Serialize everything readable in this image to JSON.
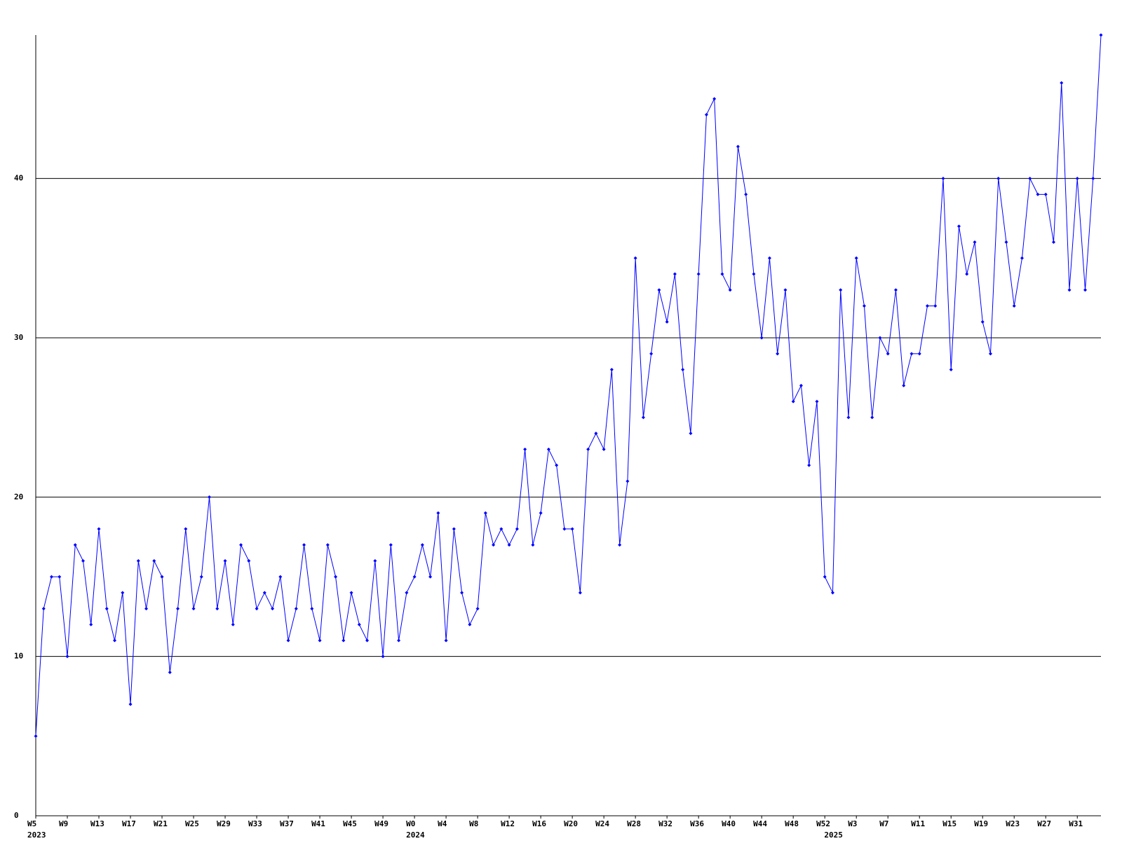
{
  "chart_data": {
    "type": "line",
    "categories": [
      "W5",
      null,
      null,
      null,
      "W9",
      null,
      null,
      null,
      "W13",
      null,
      null,
      null,
      "W17",
      null,
      null,
      null,
      "W21",
      null,
      null,
      null,
      "W25",
      null,
      null,
      null,
      "W29",
      null,
      null,
      null,
      "W33",
      null,
      null,
      null,
      "W37",
      null,
      null,
      null,
      "W41",
      null,
      null,
      null,
      "W45",
      null,
      null,
      null,
      "W49",
      null,
      null,
      null,
      "W0",
      null,
      null,
      null,
      "W4",
      null,
      null,
      null,
      "W8",
      null,
      null,
      null,
      "W12",
      null,
      null,
      null,
      "W16",
      null,
      null,
      null,
      "W20",
      null,
      null,
      null,
      "W24",
      null,
      null,
      null,
      "W28",
      null,
      null,
      null,
      "W32",
      null,
      null,
      null,
      "W36",
      null,
      null,
      null,
      "W40",
      null,
      null,
      null,
      "W44",
      null,
      null,
      null,
      "W48",
      null,
      null,
      null,
      "W52",
      null,
      null,
      null,
      "W3",
      null,
      null,
      null,
      "W7",
      null,
      null,
      null,
      "W11",
      null,
      null,
      null,
      "W15",
      null,
      null,
      null,
      "W19",
      null,
      null,
      null,
      "W23",
      null,
      null,
      null,
      "W27",
      null,
      null,
      null,
      "W31",
      null,
      null,
      null
    ],
    "year_categories": [
      "2023",
      null,
      null,
      null,
      null,
      null,
      null,
      null,
      null,
      null,
      null,
      null,
      null,
      null,
      null,
      null,
      null,
      null,
      null,
      null,
      null,
      null,
      null,
      null,
      null,
      null,
      null,
      null,
      null,
      null,
      null,
      null,
      null,
      null,
      null,
      null,
      null,
      null,
      null,
      null,
      null,
      null,
      null,
      null,
      null,
      null,
      null,
      null,
      "2024",
      null,
      null,
      null,
      null,
      null,
      null,
      null,
      null,
      null,
      null,
      null,
      null,
      null,
      null,
      null,
      null,
      null,
      null,
      null,
      null,
      null,
      null,
      null,
      null,
      null,
      null,
      null,
      null,
      null,
      null,
      null,
      null,
      null,
      null,
      null,
      null,
      null,
      null,
      null,
      null,
      null,
      null,
      null,
      null,
      null,
      null,
      null,
      null,
      null,
      null,
      null,
      null,
      "2025",
      null,
      null,
      null,
      null,
      null,
      null,
      null,
      null,
      null,
      null,
      null,
      null,
      null,
      null,
      null,
      null,
      null,
      null,
      null,
      null,
      null,
      null,
      null,
      null,
      null,
      null,
      null,
      null,
      null,
      null,
      null,
      null,
      null,
      null
    ],
    "series": [
      {
        "color": "#0000ff",
        "values": [
          5,
          13,
          15,
          15,
          10,
          17,
          16,
          12,
          18,
          13,
          11,
          14,
          7,
          16,
          13,
          16,
          15,
          9,
          13,
          18,
          13,
          15,
          20,
          13,
          16,
          12,
          17,
          16,
          13,
          14,
          13,
          15,
          11,
          13,
          17,
          13,
          11,
          17,
          15,
          11,
          14,
          12,
          11,
          16,
          10,
          17,
          11,
          14,
          15,
          17,
          15,
          19,
          11,
          18,
          14,
          12,
          13,
          19,
          17,
          18,
          17,
          18,
          23,
          17,
          19,
          23,
          22,
          18,
          18,
          14,
          23,
          24,
          23,
          28,
          17,
          21,
          35,
          25,
          29,
          33,
          31,
          34,
          28,
          24,
          34,
          44,
          45,
          34,
          33,
          42,
          39,
          34,
          30,
          35,
          29,
          33,
          26,
          27,
          22,
          26,
          15,
          14,
          33,
          25,
          35,
          32,
          25,
          30,
          29,
          33,
          27,
          29,
          29,
          32,
          32,
          40,
          28,
          37,
          34,
          36,
          31,
          29,
          40,
          36,
          32,
          35,
          40,
          39,
          39,
          36,
          46,
          33,
          40,
          33,
          40,
          49
        ]
      }
    ],
    "ylim": [
      0,
      49
    ],
    "yticks": [
      0,
      10,
      20,
      30,
      40
    ],
    "grid": true
  }
}
